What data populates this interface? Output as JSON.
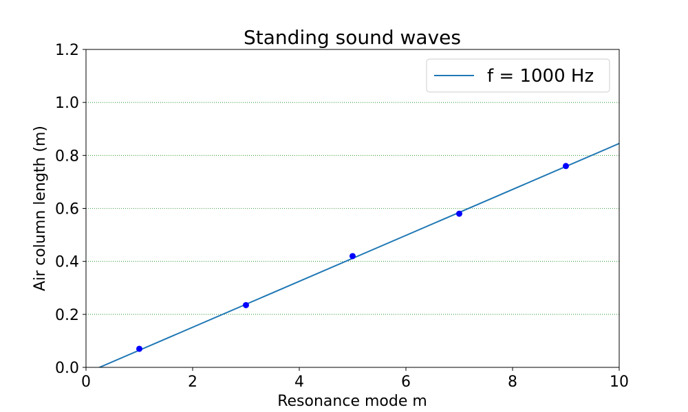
{
  "chart_data": {
    "type": "line",
    "title": "Standing sound waves",
    "xlabel": "Resonance mode m",
    "ylabel": "Air column length (m)",
    "xlim": [
      0,
      10
    ],
    "ylim": [
      0,
      1.2
    ],
    "xticks": [
      0,
      2,
      4,
      6,
      8,
      10
    ],
    "xtick_labels": [
      "0",
      "2",
      "4",
      "6",
      "8",
      "10"
    ],
    "yticks": [
      0.0,
      0.2,
      0.4,
      0.6,
      0.8,
      1.0,
      1.2
    ],
    "ytick_labels": [
      "0.0",
      "0.2",
      "0.4",
      "0.6",
      "0.8",
      "1.0",
      "1.2"
    ],
    "grid": "horizontal dotted green",
    "legend_position": "top-right",
    "series": [
      {
        "name": "f = 1000 Hz",
        "kind": "line",
        "color": "#1f77b4",
        "x": [
          0,
          10
        ],
        "y": [
          -0.022,
          0.845
        ]
      },
      {
        "kind": "scatter",
        "color": "#0000ff",
        "x": [
          1,
          3,
          5,
          7,
          9
        ],
        "y": [
          0.07,
          0.235,
          0.42,
          0.58,
          0.76
        ]
      }
    ]
  }
}
